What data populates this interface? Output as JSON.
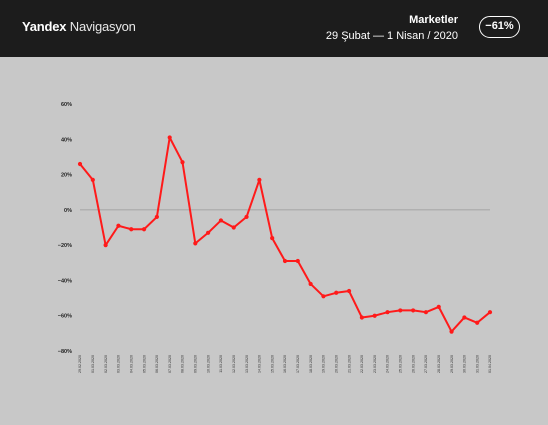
{
  "header": {
    "brand_bold": "Yandex",
    "brand_light": "Navigasyon",
    "title": "Marketler",
    "date_range": "29 Şubat  —  1 Nisan / 2020",
    "change_badge": "−61%"
  },
  "colors": {
    "header_bg": "#1c1c1c",
    "chart_bg": "#c8c8c8",
    "series": "#ff1a1a",
    "zero_line": "#999999"
  },
  "chart_data": {
    "type": "line",
    "title": "",
    "xlabel": "",
    "ylabel": "",
    "ylim": [
      -80,
      60
    ],
    "yticks": [
      60,
      40,
      20,
      0,
      -20,
      -40,
      -60,
      -80
    ],
    "ytick_labels": [
      "60%",
      "40%",
      "20%",
      "0%",
      "−20%",
      "−40%",
      "−60%",
      "−80%"
    ],
    "x": [
      "29.02.2020",
      "01.03.2020",
      "02.03.2020",
      "03.03.2020",
      "04.03.2020",
      "05.03.2020",
      "06.03.2020",
      "07.03.2020",
      "08.03.2020",
      "09.03.2020",
      "10.03.2020",
      "11.03.2020",
      "12.03.2020",
      "13.03.2020",
      "14.03.2020",
      "15.03.2020",
      "16.03.2020",
      "17.03.2020",
      "18.03.2020",
      "19.03.2020",
      "20.03.2020",
      "21.03.2020",
      "22.03.2020",
      "23.03.2020",
      "24.03.2020",
      "25.03.2020",
      "26.03.2020",
      "27.03.2020",
      "28.03.2020",
      "29.03.2020",
      "30.03.2020",
      "31.03.2020",
      "01.04.2020"
    ],
    "series": [
      {
        "name": "",
        "values": [
          26,
          17,
          -20,
          -9,
          -11,
          -11,
          -4,
          41,
          27,
          -19,
          -13,
          -6,
          -10,
          -4,
          17,
          -16,
          -29,
          -29,
          -42,
          -49,
          -47,
          -46,
          -61,
          -60,
          -58,
          -57,
          -57,
          -58,
          -55,
          -69,
          -61,
          -64,
          -58
        ]
      }
    ],
    "grid": false,
    "legend": "none"
  }
}
